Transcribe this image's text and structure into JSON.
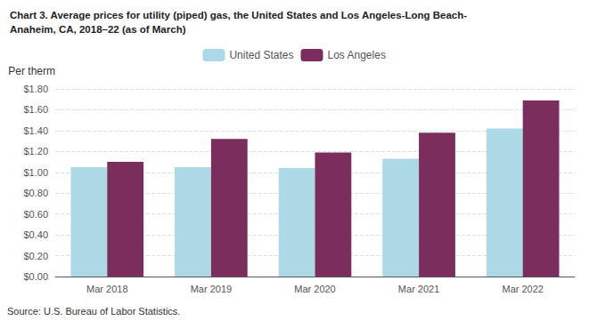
{
  "chart_data": {
    "type": "bar",
    "title": "Chart 3. Average prices for utility (piped) gas, the United States and Los Angeles-Long Beach-\nAnaheim, CA, 2018–22 (as of March)",
    "ylabel": "Per therm",
    "annotations": [
      "Source: U.S. Bureau of Labor Statistics."
    ],
    "categories": [
      "Mar 2018",
      "Mar 2019",
      "Mar 2020",
      "Mar 2021",
      "Mar 2022"
    ],
    "series": [
      {
        "name": "United States",
        "color": "#add8e6",
        "values": [
          1.05,
          1.05,
          1.04,
          1.13,
          1.42
        ]
      },
      {
        "name": "Los Angeles",
        "color": "#7b2d5e",
        "values": [
          1.1,
          1.32,
          1.19,
          1.38,
          1.69
        ]
      }
    ],
    "ylim": [
      0.0,
      1.8
    ],
    "yticks": [
      {
        "value": 0.0,
        "label": "$0.00"
      },
      {
        "value": 0.2,
        "label": "$0.20"
      },
      {
        "value": 0.4,
        "label": "$0.40"
      },
      {
        "value": 0.6,
        "label": "$0.60"
      },
      {
        "value": 0.8,
        "label": "$0.80"
      },
      {
        "value": 1.0,
        "label": "$1.00"
      },
      {
        "value": 1.2,
        "label": "$1.20"
      },
      {
        "value": 1.4,
        "label": "$1.40"
      },
      {
        "value": 1.6,
        "label": "$1.60"
      },
      {
        "value": 1.8,
        "label": "$1.80"
      }
    ],
    "grid": true,
    "legend": "top"
  }
}
